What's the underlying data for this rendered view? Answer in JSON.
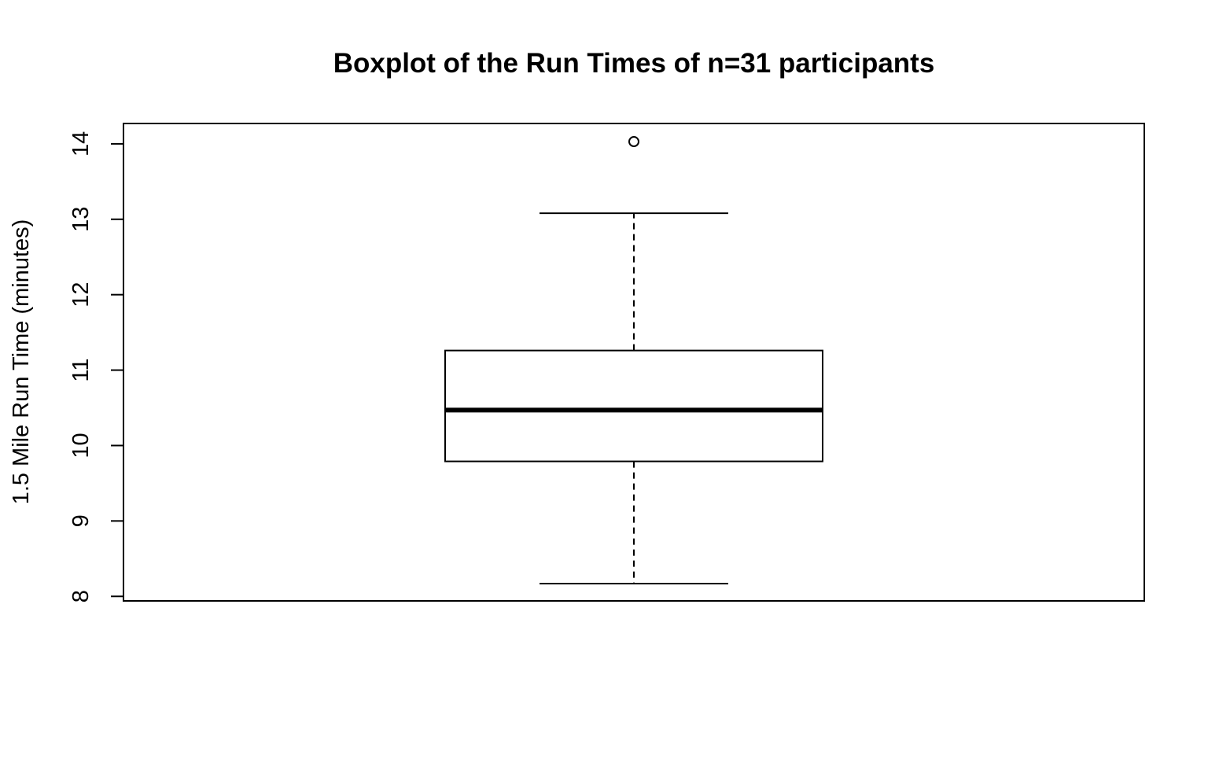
{
  "chart_data": {
    "type": "boxplot",
    "title": "Boxplot of the Run Times of n=31 participants",
    "xlabel": "",
    "ylabel": "1.5 Mile Run Time (minutes)",
    "ylim": [
      7.94,
      14.27
    ],
    "yticks": [
      8,
      9,
      10,
      11,
      12,
      13,
      14
    ],
    "ytick_labels": [
      "8",
      "9",
      "10",
      "11",
      "12",
      "13",
      "14"
    ],
    "grid": false,
    "legend": "none",
    "n": 31,
    "series": [
      {
        "whisker_low": 8.17,
        "q1": 9.79,
        "median": 10.47,
        "q3": 11.26,
        "whisker_high": 13.08,
        "outliers": [
          14.03
        ]
      }
    ],
    "colors": {
      "stroke": "#000000",
      "box_fill": "#ffffff"
    }
  }
}
